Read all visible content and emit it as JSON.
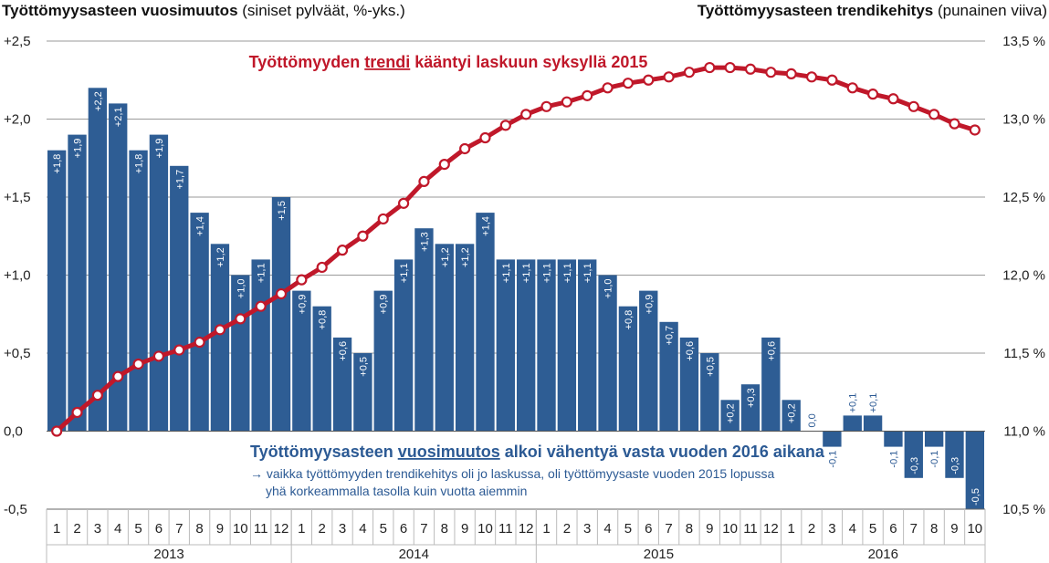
{
  "titles": {
    "left_bold": "Työttömyysasteen vuosimuutos",
    "left_rest": " (siniset pylväät, %-yks.)",
    "right_bold": "Työttömyysasteen trendikehitys",
    "right_rest": " (punainen viiva)"
  },
  "annotations": {
    "red_pre": "Työttömyyden ",
    "red_underlined": "trendi",
    "red_post": " kääntyi laskuun syksyllä 2015",
    "blue_pre": "Työttömyysasteen ",
    "blue_underlined": "vuosimuutos",
    "blue_post": " alkoi vähentyä vasta vuoden 2016 aikana",
    "sub_line1": "→ vaikka työttömyyden trendikehitys oli jo laskussa, oli työttömyysaste vuoden 2015 lopussa",
    "sub_line2": "yhä korkeammalla tasolla kuin vuotta aiemmin"
  },
  "colors": {
    "bar": "#2e5d94",
    "line": "#c0182a",
    "grid": "#9a9a9a",
    "annotation_blue": "#2c5a94"
  },
  "chart_data": {
    "type": "bar",
    "categories": [
      "1",
      "2",
      "3",
      "4",
      "5",
      "6",
      "7",
      "8",
      "9",
      "10",
      "11",
      "12",
      "1",
      "2",
      "3",
      "4",
      "5",
      "6",
      "7",
      "8",
      "9",
      "10",
      "11",
      "12",
      "1",
      "2",
      "3",
      "4",
      "5",
      "6",
      "7",
      "8",
      "9",
      "10",
      "11",
      "12",
      "1",
      "2",
      "3",
      "4",
      "5",
      "6",
      "7",
      "8",
      "9",
      "10"
    ],
    "years": [
      {
        "label": "2013",
        "months": 12
      },
      {
        "label": "2014",
        "months": 12
      },
      {
        "label": "2015",
        "months": 12
      },
      {
        "label": "2016",
        "months": 10
      }
    ],
    "series": [
      {
        "type": "bar",
        "axis": "left",
        "values": [
          1.8,
          1.9,
          2.2,
          2.1,
          1.8,
          1.9,
          1.7,
          1.4,
          1.2,
          1.0,
          1.1,
          1.5,
          0.9,
          0.8,
          0.6,
          0.5,
          0.9,
          1.1,
          1.3,
          1.2,
          1.2,
          1.4,
          1.1,
          1.1,
          1.1,
          1.1,
          1.1,
          1.0,
          0.8,
          0.9,
          0.7,
          0.6,
          0.5,
          0.2,
          0.3,
          0.6,
          0.2,
          0.0,
          -0.1,
          0.1,
          0.1,
          -0.1,
          -0.3,
          -0.1,
          -0.3,
          -0.5
        ],
        "labels": [
          "+1,8",
          "+1,9",
          "+2,2",
          "+2,1",
          "+1,8",
          "+1,9",
          "+1,7",
          "+1,4",
          "+1,2",
          "+1,0",
          "+1,1",
          "+1,5",
          "+0,9",
          "+0,8",
          "+0,6",
          "+0,5",
          "+0,9",
          "+1,1",
          "+1,3",
          "+1,2",
          "+1,2",
          "+1,4",
          "+1,1",
          "+1,1",
          "+1,1",
          "+1,1",
          "+1,1",
          "+1,0",
          "+0,8",
          "+0,9",
          "+0,7",
          "+0,6",
          "+0,5",
          "+0,2",
          "+0,3",
          "+0,6",
          "+0,2",
          "0,0",
          "-0,1",
          "+0,1",
          "+0,1",
          "-0,1",
          "-0,3",
          "-0,1",
          "-0,3",
          "-0,5"
        ]
      },
      {
        "type": "line",
        "axis": "right",
        "values": [
          11.0,
          11.12,
          11.23,
          11.35,
          11.43,
          11.48,
          11.52,
          11.57,
          11.65,
          11.72,
          11.8,
          11.88,
          11.97,
          12.05,
          12.16,
          12.25,
          12.36,
          12.46,
          12.6,
          12.71,
          12.81,
          12.88,
          12.96,
          13.03,
          13.08,
          13.11,
          13.15,
          13.2,
          13.23,
          13.25,
          13.27,
          13.3,
          13.33,
          13.33,
          13.32,
          13.3,
          13.29,
          13.27,
          13.25,
          13.2,
          13.16,
          13.13,
          13.08,
          13.03,
          12.97,
          12.93
        ]
      }
    ],
    "y_left": {
      "min": -0.5,
      "max": 2.5,
      "ticks": [
        -0.5,
        0.0,
        0.5,
        1.0,
        1.5,
        2.0,
        2.5
      ],
      "tick_labels": [
        "-0,5",
        "0,0",
        "+0,5",
        "+1,0",
        "+1,5",
        "+2,0",
        "+2,5"
      ]
    },
    "y_right": {
      "min": 10.5,
      "max": 13.5,
      "ticks": [
        10.5,
        11.0,
        11.5,
        12.0,
        12.5,
        13.0,
        13.5
      ],
      "tick_labels": [
        "10,5 %",
        "11,0 %",
        "11,5 %",
        "12,0 %",
        "12,5 %",
        "13,0 %",
        "13,5 %"
      ]
    },
    "grid": true
  }
}
